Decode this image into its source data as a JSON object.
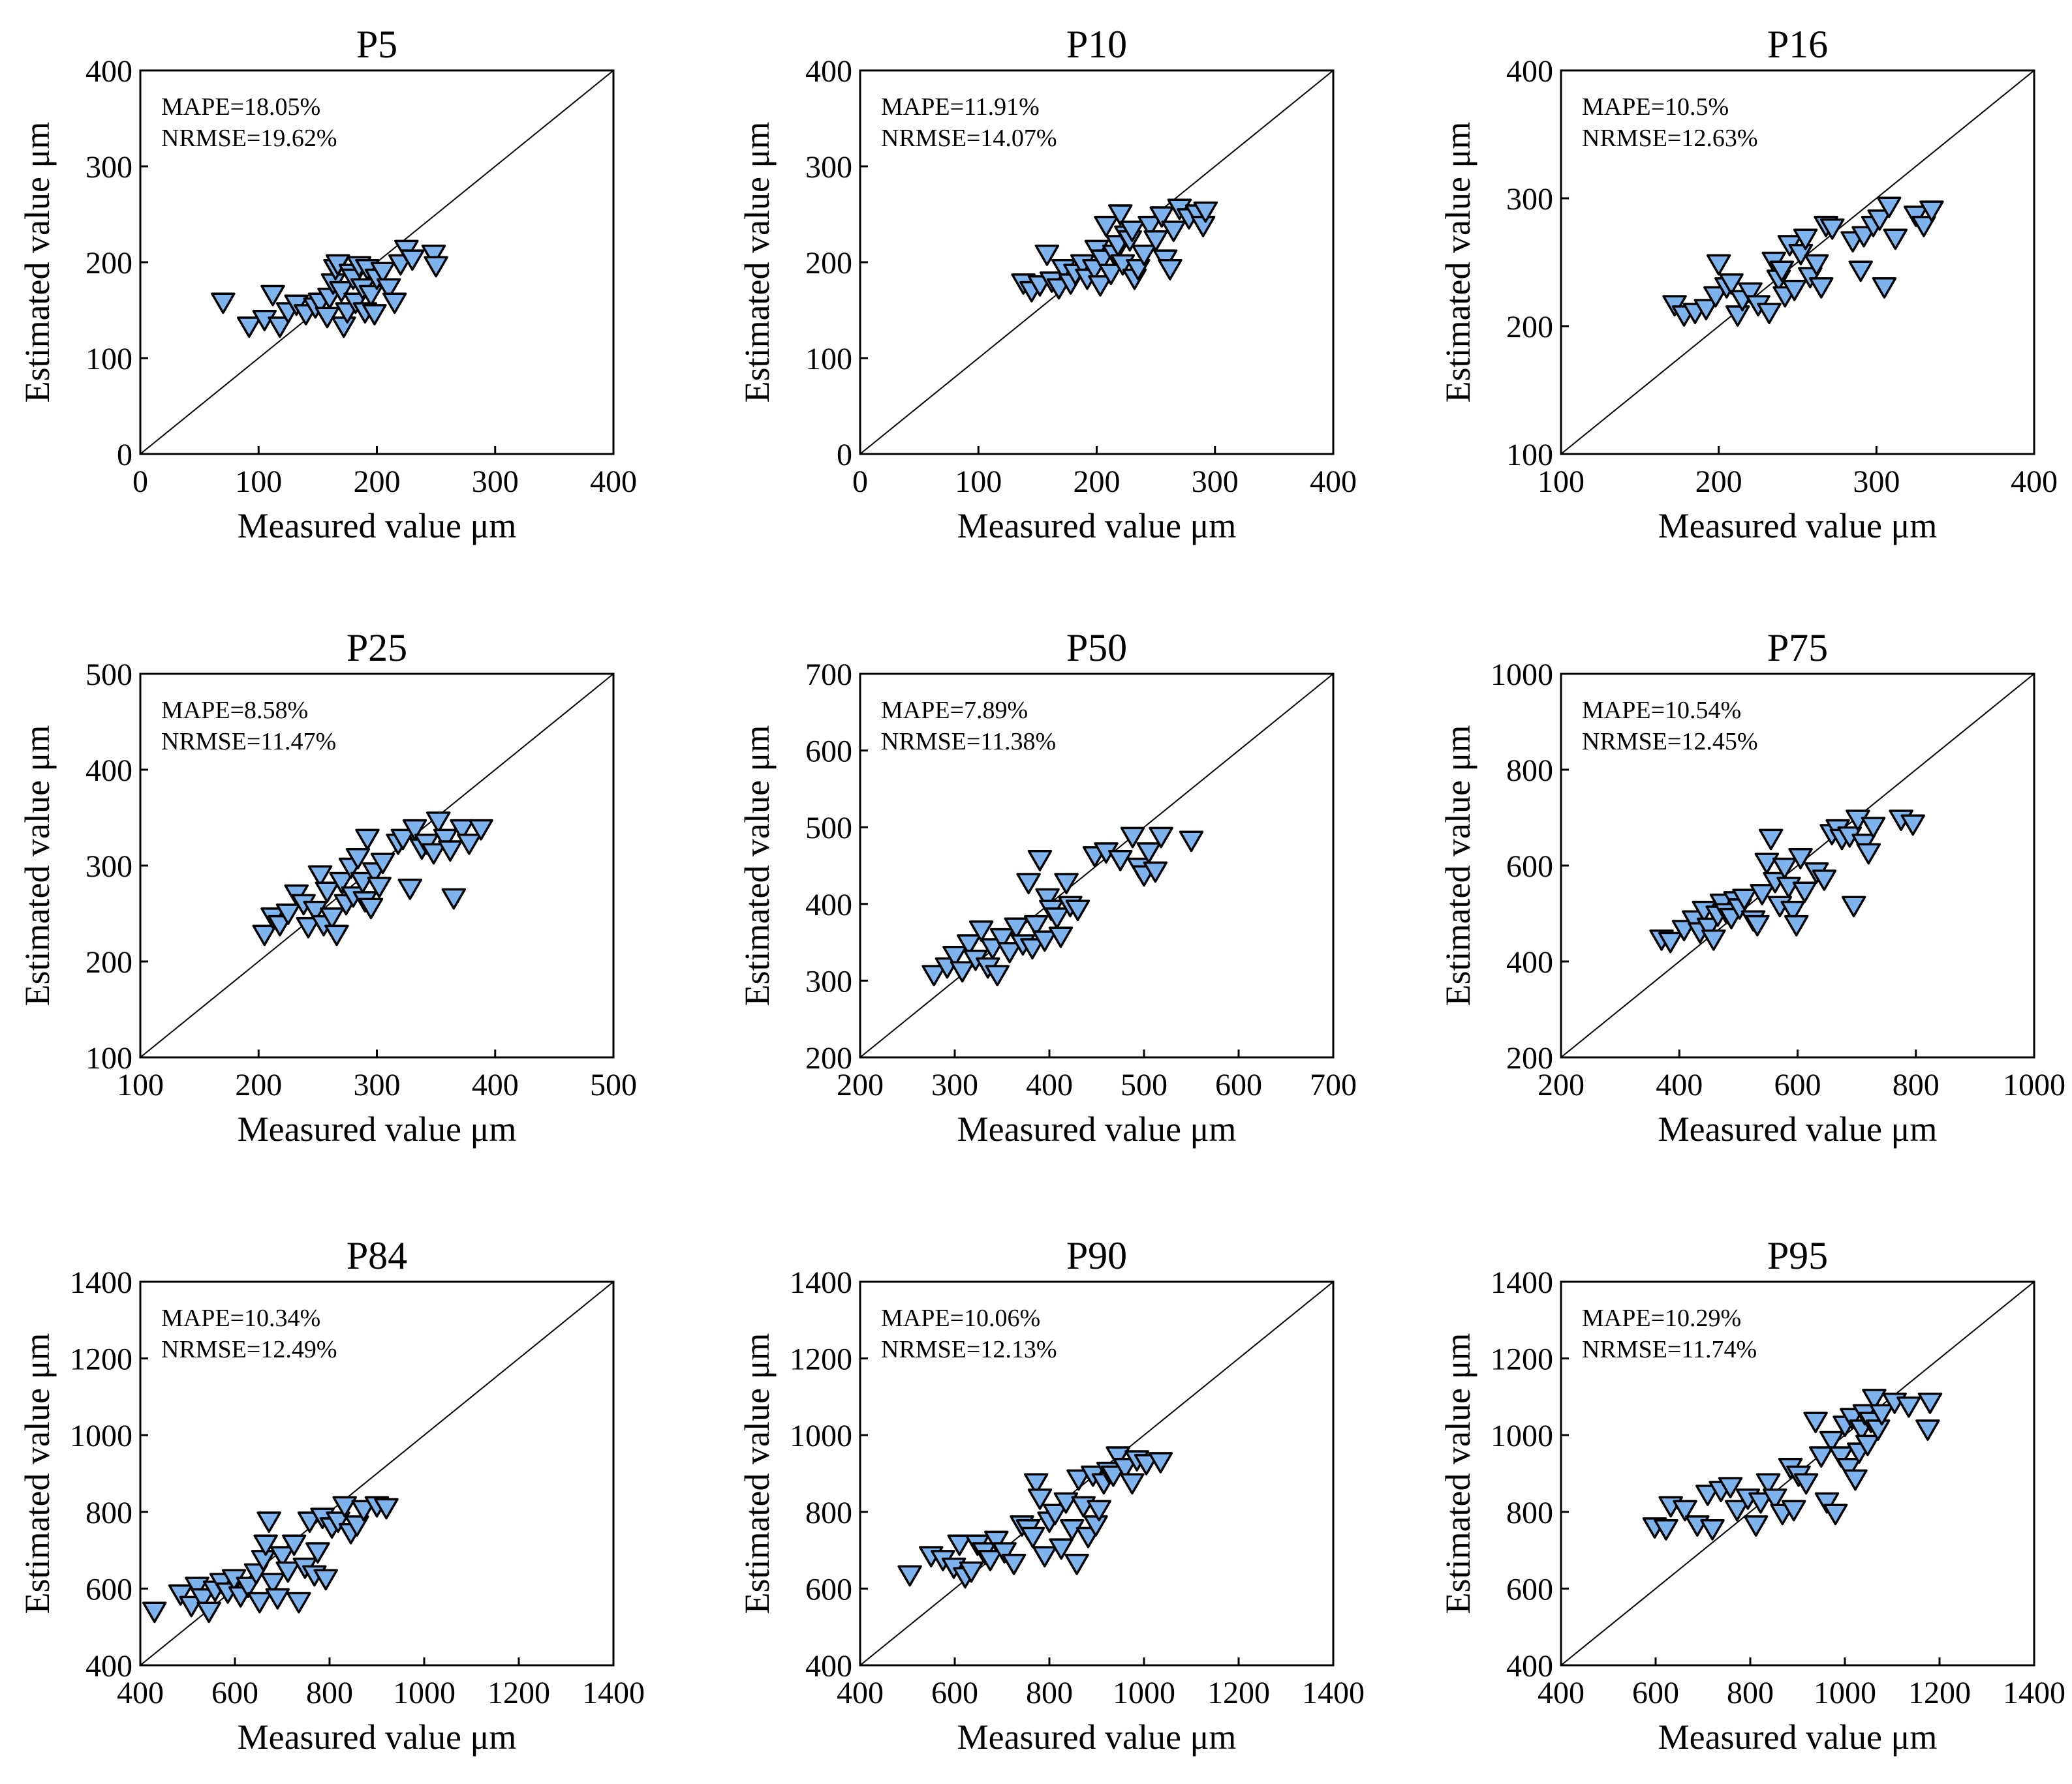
{
  "figure_title": "",
  "colors": {
    "marker_fill": "#7fb3ee",
    "marker_stroke": "#000000",
    "axis": "#000000",
    "reference_line": "#000000"
  },
  "chart_data": [
    {
      "type": "scatter",
      "title": "P5",
      "xlabel": "Measured value μm",
      "ylabel": "Estimated value μm",
      "xlim": [
        0,
        400
      ],
      "ylim": [
        0,
        400
      ],
      "xticks": [
        0,
        100,
        200,
        300,
        400
      ],
      "yticks": [
        0,
        100,
        200,
        300,
        400
      ],
      "reference_line": "y = x",
      "stats": [
        "MAPE=18.05%",
        "NRMSE=19.62%"
      ],
      "x": [
        70,
        92,
        105,
        112,
        118,
        125,
        132,
        140,
        148,
        152,
        158,
        160,
        163,
        165,
        167,
        170,
        172,
        175,
        178,
        180,
        182,
        185,
        188,
        190,
        192,
        195,
        198,
        200,
        205,
        210,
        215,
        220,
        225,
        230,
        248,
        250
      ],
      "y": [
        160,
        135,
        142,
        168,
        135,
        150,
        158,
        148,
        155,
        160,
        145,
        165,
        180,
        195,
        200,
        172,
        135,
        150,
        190,
        185,
        160,
        198,
        175,
        150,
        195,
        168,
        148,
        185,
        192,
        175,
        160,
        200,
        215,
        205,
        210,
        198
      ]
    },
    {
      "type": "scatter",
      "title": "P10",
      "xlabel": "Measured value μm",
      "ylabel": "Estimated value μm",
      "xlim": [
        0,
        400
      ],
      "ylim": [
        0,
        400
      ],
      "xticks": [
        0,
        100,
        200,
        300,
        400
      ],
      "yticks": [
        0,
        100,
        200,
        300,
        400
      ],
      "reference_line": "y = x",
      "stats": [
        "MAPE=11.91%",
        "NRMSE=14.07%"
      ],
      "x": [
        138,
        145,
        152,
        158,
        162,
        168,
        172,
        178,
        182,
        188,
        192,
        198,
        200,
        203,
        205,
        208,
        212,
        215,
        218,
        220,
        222,
        225,
        228,
        230,
        232,
        235,
        240,
        245,
        250,
        255,
        258,
        262,
        265,
        270,
        278,
        285,
        290,
        292
      ],
      "y": [
        180,
        172,
        178,
        210,
        182,
        175,
        195,
        180,
        190,
        200,
        185,
        195,
        215,
        178,
        205,
        240,
        190,
        210,
        220,
        252,
        200,
        230,
        225,
        235,
        185,
        195,
        210,
        240,
        225,
        250,
        205,
        195,
        235,
        258,
        248,
        252,
        240,
        255
      ]
    },
    {
      "type": "scatter",
      "title": "P16",
      "xlabel": "Measured value μm",
      "ylabel": "Estimated value μm",
      "xlim": [
        100,
        400
      ],
      "ylim": [
        100,
        400
      ],
      "xticks": [
        100,
        200,
        300,
        400
      ],
      "yticks": [
        100,
        200,
        300,
        400
      ],
      "reference_line": "y = x",
      "stats": [
        "MAPE=10.5%",
        "NRMSE=12.63%"
      ],
      "x": [
        172,
        178,
        185,
        192,
        198,
        200,
        205,
        208,
        212,
        215,
        220,
        225,
        232,
        235,
        238,
        240,
        242,
        245,
        248,
        252,
        255,
        258,
        262,
        265,
        268,
        272,
        285,
        290,
        292,
        298,
        302,
        305,
        308,
        312,
        325,
        330,
        335
      ],
      "y": [
        218,
        210,
        212,
        215,
        225,
        250,
        232,
        235,
        210,
        222,
        228,
        218,
        212,
        252,
        238,
        245,
        225,
        265,
        230,
        258,
        270,
        240,
        250,
        232,
        280,
        278,
        268,
        245,
        272,
        280,
        285,
        232,
        295,
        270,
        288,
        280,
        292
      ]
    },
    {
      "type": "scatter",
      "title": "P25",
      "xlabel": "Measured value μm",
      "ylabel": "Estimated value μm",
      "xlim": [
        100,
        500
      ],
      "ylim": [
        100,
        500
      ],
      "xticks": [
        100,
        200,
        300,
        400,
        500
      ],
      "yticks": [
        100,
        200,
        300,
        400,
        500
      ],
      "reference_line": "y = x",
      "stats": [
        "MAPE=8.58%",
        "NRMSE=11.47%"
      ],
      "x": [
        205,
        212,
        218,
        225,
        232,
        238,
        242,
        248,
        252,
        255,
        258,
        262,
        266,
        270,
        274,
        278,
        280,
        284,
        288,
        290,
        292,
        295,
        298,
        302,
        305,
        318,
        322,
        328,
        332,
        338,
        342,
        348,
        352,
        358,
        362,
        365,
        372,
        378,
        388
      ],
      "y": [
        230,
        248,
        240,
        252,
        272,
        262,
        238,
        255,
        292,
        240,
        275,
        248,
        230,
        285,
        262,
        300,
        270,
        310,
        285,
        265,
        330,
        258,
        295,
        280,
        305,
        325,
        330,
        278,
        340,
        320,
        325,
        315,
        348,
        330,
        318,
        268,
        340,
        325,
        340
      ]
    },
    {
      "type": "scatter",
      "title": "P50",
      "xlabel": "Measured value μm",
      "ylabel": "Estimated value μm",
      "xlim": [
        200,
        700
      ],
      "ylim": [
        200,
        700
      ],
      "xticks": [
        200,
        300,
        400,
        500,
        600,
        700
      ],
      "yticks": [
        200,
        300,
        400,
        500,
        600,
        700
      ],
      "reference_line": "y = x",
      "stats": [
        "MAPE=7.89%",
        "NRMSE=11.38%"
      ],
      "x": [
        278,
        292,
        300,
        308,
        315,
        322,
        328,
        335,
        340,
        345,
        350,
        358,
        365,
        372,
        378,
        382,
        386,
        390,
        395,
        398,
        402,
        408,
        412,
        418,
        422,
        430,
        448,
        460,
        475,
        488,
        495,
        500,
        505,
        512,
        518,
        550
      ],
      "y": [
        310,
        320,
        335,
        315,
        350,
        330,
        368,
        320,
        345,
        310,
        358,
        340,
        372,
        350,
        430,
        345,
        375,
        460,
        355,
        410,
        395,
        385,
        360,
        430,
        400,
        395,
        465,
        470,
        460,
        490,
        450,
        440,
        470,
        445,
        490,
        485
      ]
    },
    {
      "type": "scatter",
      "title": "P75",
      "xlabel": "Measured value μm",
      "ylabel": "Estimated value μm",
      "xlim": [
        200,
        1000
      ],
      "ylim": [
        200,
        1000
      ],
      "xticks": [
        200,
        400,
        600,
        800,
        1000
      ],
      "yticks": [
        200,
        400,
        600,
        800,
        1000
      ],
      "reference_line": "y = x",
      "stats": [
        "MAPE=10.54%",
        "NRMSE=12.45%"
      ],
      "x": [
        370,
        385,
        408,
        425,
        435,
        442,
        450,
        458,
        465,
        472,
        480,
        488,
        495,
        502,
        510,
        525,
        532,
        540,
        548,
        555,
        562,
        570,
        578,
        585,
        592,
        598,
        605,
        612,
        632,
        645,
        658,
        668,
        675,
        688,
        695,
        702,
        712,
        720,
        728,
        775,
        795
      ],
      "y": [
        450,
        445,
        470,
        490,
        465,
        510,
        475,
        450,
        500,
        525,
        505,
        495,
        530,
        515,
        535,
        490,
        480,
        545,
        610,
        660,
        570,
        520,
        600,
        560,
        510,
        480,
        620,
        550,
        590,
        575,
        670,
        680,
        660,
        665,
        520,
        700,
        650,
        630,
        685,
        700,
        690
      ]
    },
    {
      "type": "scatter",
      "title": "P84",
      "xlabel": "Measured value μm",
      "ylabel": "Estimated value μm",
      "xlim": [
        400,
        1400
      ],
      "ylim": [
        400,
        1400
      ],
      "xticks": [
        400,
        600,
        800,
        1000,
        1200,
        1400
      ],
      "yticks": [
        400,
        600,
        800,
        1000,
        1200,
        1400
      ],
      "reference_line": "y = x",
      "stats": [
        "MAPE=10.34%",
        "NRMSE=12.49%"
      ],
      "x": [
        430,
        485,
        508,
        520,
        532,
        545,
        558,
        572,
        585,
        598,
        612,
        628,
        645,
        652,
        660,
        665,
        672,
        680,
        690,
        700,
        712,
        725,
        735,
        748,
        758,
        768,
        775,
        785,
        792,
        805,
        818,
        832,
        845,
        858,
        872,
        900,
        920
      ],
      "y": [
        545,
        590,
        560,
        610,
        580,
        545,
        600,
        620,
        595,
        630,
        585,
        610,
        645,
        570,
        680,
        720,
        780,
        620,
        580,
        690,
        650,
        720,
        570,
        660,
        780,
        640,
        700,
        790,
        630,
        765,
        780,
        820,
        750,
        770,
        810,
        820,
        815
      ]
    },
    {
      "type": "scatter",
      "title": "P90",
      "xlabel": "Measured value μm",
      "ylabel": "Estimated value μm",
      "xlim": [
        400,
        1400
      ],
      "ylim": [
        400,
        1400
      ],
      "xticks": [
        400,
        600,
        800,
        1000,
        1200,
        1400
      ],
      "yticks": [
        400,
        600,
        800,
        1000,
        1200,
        1400
      ],
      "reference_line": "y = x",
      "stats": [
        "MAPE=10.06%",
        "NRMSE=12.13%"
      ],
      "x": [
        505,
        550,
        575,
        598,
        610,
        622,
        635,
        648,
        662,
        675,
        688,
        705,
        725,
        742,
        755,
        765,
        772,
        780,
        790,
        800,
        812,
        825,
        835,
        848,
        858,
        862,
        872,
        882,
        892,
        898,
        905,
        915,
        925,
        935,
        945,
        960,
        975,
        985,
        1005,
        1035
      ],
      "y": [
        640,
        690,
        680,
        660,
        720,
        635,
        650,
        720,
        700,
        680,
        730,
        700,
        670,
        770,
        760,
        740,
        880,
        840,
        690,
        780,
        800,
        710,
        830,
        760,
        670,
        890,
        820,
        740,
        900,
        770,
        810,
        880,
        910,
        900,
        950,
        920,
        880,
        940,
        930,
        935
      ]
    },
    {
      "type": "scatter",
      "title": "P95",
      "xlabel": "Measured value μm",
      "ylabel": "Estimated value μm",
      "xlim": [
        400,
        1400
      ],
      "ylim": [
        400,
        1400
      ],
      "xticks": [
        400,
        600,
        800,
        1000,
        1200,
        1400
      ],
      "yticks": [
        400,
        600,
        800,
        1000,
        1200,
        1400
      ],
      "reference_line": "y = x",
      "stats": [
        "MAPE=10.29%",
        "NRMSE=11.74%"
      ],
      "x": [
        598,
        622,
        632,
        662,
        688,
        710,
        720,
        738,
        758,
        772,
        795,
        812,
        822,
        838,
        852,
        868,
        885,
        892,
        902,
        918,
        938,
        950,
        962,
        972,
        980,
        992,
        1000,
        1008,
        1015,
        1022,
        1030,
        1035,
        1042,
        1048,
        1055,
        1062,
        1070,
        1078,
        1105,
        1135,
        1175,
        1180
      ],
      "y": [
        765,
        760,
        820,
        810,
        770,
        850,
        760,
        860,
        870,
        810,
        840,
        770,
        830,
        880,
        840,
        800,
        920,
        810,
        900,
        880,
        1040,
        950,
        830,
        990,
        800,
        950,
        1030,
        920,
        1050,
        890,
        960,
        1020,
        1060,
        980,
        1040,
        1100,
        1020,
        1060,
        1090,
        1080,
        1020,
        1090
      ]
    }
  ]
}
